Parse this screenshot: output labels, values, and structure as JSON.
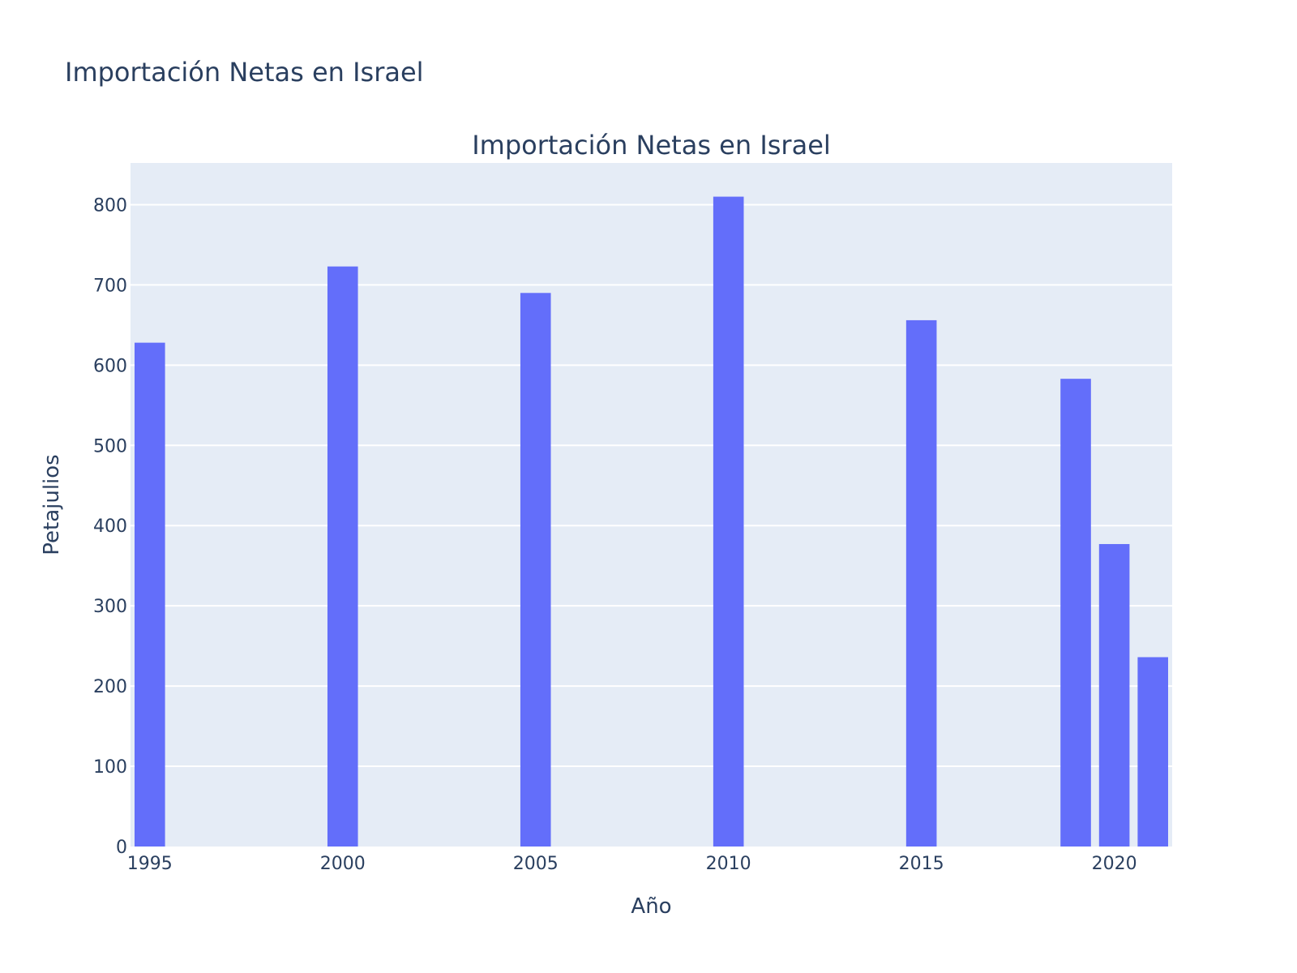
{
  "header": {
    "title": "Importación Netas en Israel"
  },
  "chart_data": {
    "type": "bar",
    "title": "Importación Netas en Israel",
    "xlabel": "Año",
    "ylabel": "Petajulios",
    "x": [
      1995,
      2000,
      2005,
      2010,
      2015,
      2019,
      2020,
      2021
    ],
    "values": [
      628,
      723,
      690,
      810,
      656,
      583,
      377,
      236
    ],
    "xlim": [
      1994.5,
      2021.5
    ],
    "ylim": [
      0,
      852
    ],
    "xticks": [
      1995,
      2000,
      2005,
      2010,
      2015,
      2020
    ],
    "yticks": [
      0,
      100,
      200,
      300,
      400,
      500,
      600,
      700,
      800
    ],
    "bar_color": "#636efa",
    "plot_bg": "#e5ecf6",
    "grid": true,
    "legend": "none"
  }
}
